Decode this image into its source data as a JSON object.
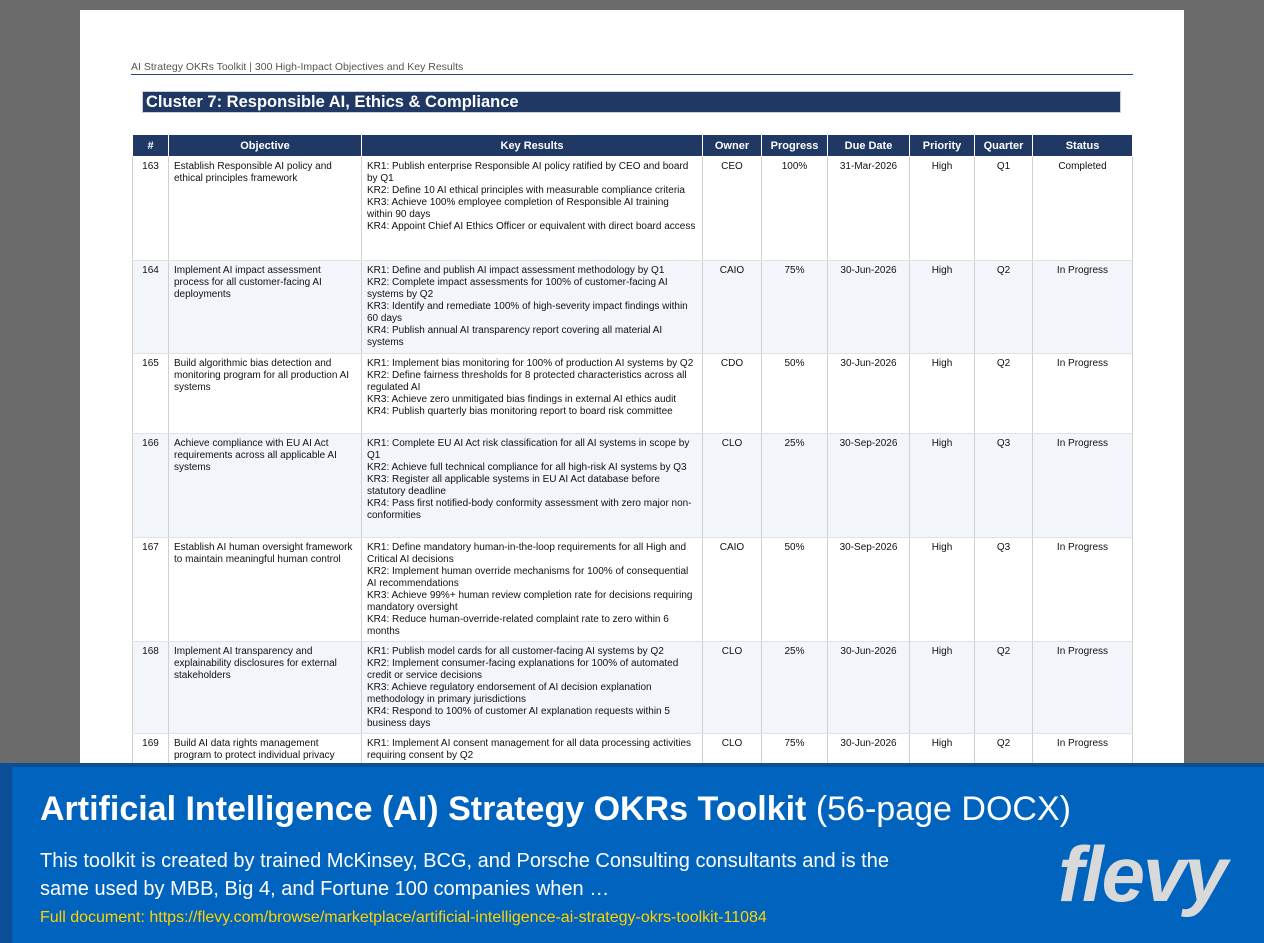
{
  "document": {
    "running_header": "AI Strategy OKRs Toolkit  |  300 High-Impact Objectives and Key Results",
    "cluster_title": "Cluster 7: Responsible AI, Ethics & Compliance",
    "columns": [
      "#",
      "Objective",
      "Key Results",
      "Owner",
      "Progress",
      "Due Date",
      "Priority",
      "Quarter",
      "Status"
    ],
    "rows": [
      {
        "num": "163",
        "objective": "Establish Responsible AI policy and ethical principles framework",
        "krs": [
          "KR1: Publish enterprise Responsible AI policy ratified by CEO and board by Q1",
          "KR2: Define 10 AI ethical principles with measurable compliance criteria",
          "KR3: Achieve 100% employee completion of Responsible AI training within 90 days",
          "KR4: Appoint Chief AI Ethics Officer or equivalent with direct board access"
        ],
        "owner": "CEO",
        "progress": "100%",
        "due": "31-Mar-2026",
        "priority": "High",
        "quarter": "Q1",
        "status": "Completed"
      },
      {
        "num": "164",
        "objective": "Implement AI impact assessment process for all customer-facing AI deployments",
        "krs": [
          "KR1: Define and publish AI impact assessment methodology by Q1",
          "KR2: Complete impact assessments for 100% of customer-facing AI systems by Q2",
          "KR3: Identify and remediate 100% of high-severity impact findings within 60 days",
          "KR4: Publish annual AI transparency report covering all material AI systems"
        ],
        "owner": "CAIO",
        "progress": "75%",
        "due": "30-Jun-2026",
        "priority": "High",
        "quarter": "Q2",
        "status": "In Progress"
      },
      {
        "num": "165",
        "objective": "Build algorithmic bias detection and monitoring program for all production AI systems",
        "krs": [
          "KR1: Implement bias monitoring for 100% of production AI systems by Q2",
          "KR2: Define fairness thresholds for 8 protected characteristics across all regulated AI",
          "KR3: Achieve zero unmitigated bias findings in external AI ethics audit",
          "KR4: Publish quarterly bias monitoring report to board risk committee"
        ],
        "owner": "CDO",
        "progress": "50%",
        "due": "30-Jun-2026",
        "priority": "High",
        "quarter": "Q2",
        "status": "In Progress"
      },
      {
        "num": "166",
        "objective": "Achieve compliance with EU AI Act requirements across all applicable AI systems",
        "krs": [
          "KR1: Complete EU AI Act risk classification for all AI systems in scope by Q1",
          "KR2: Achieve full technical compliance for all high-risk AI systems by Q3",
          "KR3: Register all applicable systems in EU AI Act database before statutory deadline",
          "KR4: Pass first notified-body conformity assessment with zero major non-conformities"
        ],
        "owner": "CLO",
        "progress": "25%",
        "due": "30-Sep-2026",
        "priority": "High",
        "quarter": "Q3",
        "status": "In Progress"
      },
      {
        "num": "167",
        "objective": "Establish AI human oversight framework to maintain meaningful human control",
        "krs": [
          "KR1: Define mandatory human-in-the-loop requirements for all High and Critical AI decisions",
          "KR2: Implement human override mechanisms for 100% of consequential AI recommendations",
          "KR3: Achieve 99%+ human review completion rate for decisions requiring mandatory oversight",
          "KR4: Reduce human-override-related complaint rate to zero within 6 months"
        ],
        "owner": "CAIO",
        "progress": "50%",
        "due": "30-Sep-2026",
        "priority": "High",
        "quarter": "Q3",
        "status": "In Progress"
      },
      {
        "num": "168",
        "objective": "Implement AI transparency and explainability disclosures for external stakeholders",
        "krs": [
          "KR1: Publish model cards for all customer-facing AI systems by Q2",
          "KR2: Implement consumer-facing explanations for 100% of automated credit or service decisions",
          "KR3: Achieve regulatory endorsement of AI decision explanation methodology in primary jurisdictions",
          "KR4: Respond to 100% of customer AI explanation requests within 5 business days"
        ],
        "owner": "CLO",
        "progress": "25%",
        "due": "30-Jun-2026",
        "priority": "High",
        "quarter": "Q2",
        "status": "In Progress"
      },
      {
        "num": "169",
        "objective": "Build AI data rights management program to protect individual privacy",
        "krs": [
          "KR1: Implement AI consent management for all data processing activities requiring consent by Q2"
        ],
        "owner": "CLO",
        "progress": "75%",
        "due": "30-Jun-2026",
        "priority": "High",
        "quarter": "Q2",
        "status": "In Progress"
      }
    ]
  },
  "banner": {
    "title_bold": "Artificial Intelligence (AI) Strategy OKRs Toolkit",
    "title_light": "(56-page DOCX)",
    "description": "This toolkit is created by trained McKinsey, BCG, and Porsche Consulting consultants and is the same used by MBB, Big 4, and Fortune 100 companies when …",
    "link": "Full document: https://flevy.com/browse/marketplace/artificial-intelligence-ai-strategy-okrs-toolkit-11084",
    "logo": "flevy"
  },
  "colors": {
    "header_navy": "#1f3864",
    "banner_blue": "#0063be",
    "link_yellow": "#ffd200"
  }
}
